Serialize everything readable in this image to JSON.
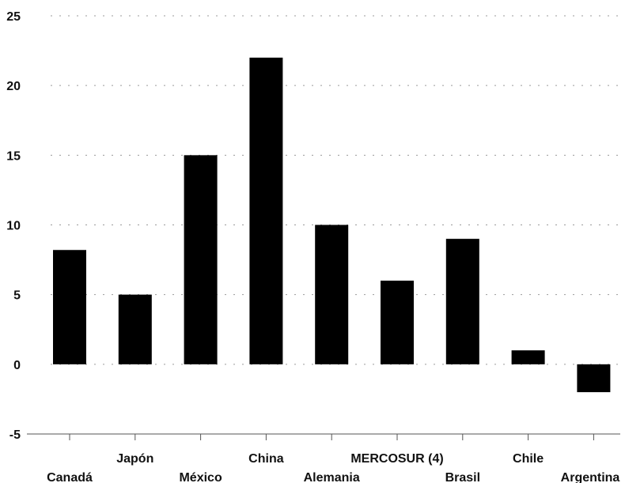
{
  "chart_data": {
    "type": "bar",
    "title": "",
    "xlabel": "",
    "ylabel": "",
    "ylim": [
      -5,
      25
    ],
    "yticks": [
      25,
      20,
      15,
      10,
      5,
      0,
      -5
    ],
    "grid": true,
    "categories": [
      "Canadá",
      "Japón",
      "México",
      "China",
      "Alemania",
      "MERCOSUR (4)",
      "Brasil",
      "Chile",
      "Argentina"
    ],
    "values": [
      8.2,
      5,
      15,
      22,
      10,
      6,
      9,
      1,
      -2
    ],
    "bar_color": "#000000"
  }
}
